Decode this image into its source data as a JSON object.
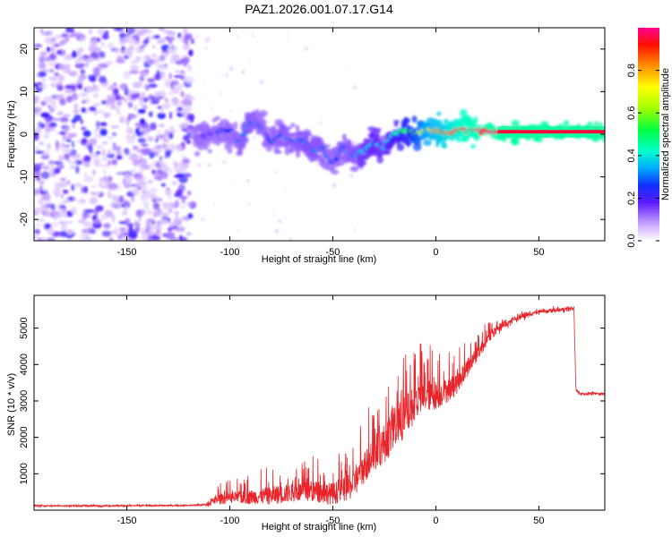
{
  "title": "PAZ1.2026.001.07.17.G14",
  "chart_data": [
    {
      "type": "heatmap",
      "name": "spectrogram",
      "xlabel": "Height of straight line (km)",
      "ylabel": "Frequency (Hz)",
      "xlim": [
        -195,
        82
      ],
      "ylim": [
        -25,
        25
      ],
      "xticks": [
        -150,
        -100,
        -50,
        0,
        50
      ],
      "xtick_labels": [
        "-150",
        "-100",
        "-50",
        "0",
        "50"
      ],
      "yticks": [
        -20,
        -10,
        0,
        10,
        20
      ],
      "ytick_labels": [
        "-20",
        "-10",
        "0",
        "10",
        "20"
      ],
      "colorbar": {
        "label": "Normalized spectral amplitude",
        "range": [
          0,
          1
        ],
        "ticks": [
          0.0,
          0.2,
          0.4,
          0.6,
          0.8
        ],
        "tick_labels": [
          "0.0",
          "0.2",
          "0.4",
          "0.6",
          "0.8"
        ],
        "colormap": [
          "#ffffff",
          "#9b4dff",
          "#3a1aff",
          "#00c8ff",
          "#00ff80",
          "#7fff00",
          "#ffff00",
          "#ff8000",
          "#ff0000",
          "#ff0080"
        ]
      },
      "ridge": {
        "x": [
          -117,
          -110,
          -100,
          -95,
          -90,
          -85,
          -80,
          -75,
          -70,
          -65,
          -60,
          -55,
          -50,
          -45,
          -40,
          -35,
          -30,
          -25,
          -20,
          -15,
          -10,
          -5,
          0,
          5,
          10,
          15,
          20,
          30,
          40,
          60,
          82
        ],
        "frequency": [
          -1,
          0,
          1,
          -2,
          3,
          2,
          -2,
          0,
          -2,
          -1,
          -4,
          -3,
          -7,
          -3,
          -5,
          -4,
          -2,
          -3,
          0,
          1,
          0,
          1,
          1,
          0,
          1,
          1,
          0.8,
          0.6,
          0.6,
          0.6,
          0.6
        ],
        "amplitude": [
          0.12,
          0.2,
          0.25,
          0.28,
          0.3,
          0.28,
          0.25,
          0.3,
          0.28,
          0.3,
          0.32,
          0.3,
          0.25,
          0.3,
          0.3,
          0.35,
          0.38,
          0.35,
          0.45,
          0.5,
          0.6,
          0.75,
          0.8,
          0.85,
          0.9,
          0.95,
          0.95,
          1.0,
          1.0,
          1.0,
          1.0
        ]
      },
      "noise_region_x": [
        -195,
        -118
      ]
    },
    {
      "type": "line",
      "name": "snr",
      "xlabel": "Height of straight line (km)",
      "ylabel": "SNR (10 * v/v)",
      "xlim": [
        -195,
        82
      ],
      "ylim": [
        0,
        5900
      ],
      "xticks": [
        -150,
        -100,
        -50,
        0,
        50
      ],
      "xtick_labels": [
        "-150",
        "-100",
        "-50",
        "0",
        "50"
      ],
      "yticks": [
        1000,
        2000,
        3000,
        4000,
        5000
      ],
      "ytick_labels": [
        "1000",
        "2000",
        "3000",
        "4000",
        "5000"
      ],
      "color": "#e8242a",
      "envelope": {
        "x": [
          -195,
          -160,
          -120,
          -112,
          -105,
          -100,
          -90,
          -80,
          -70,
          -60,
          -50,
          -42,
          -38,
          -35,
          -30,
          -25,
          -20,
          -15,
          -10,
          -5,
          0,
          5,
          10,
          15,
          20,
          25,
          30,
          40,
          50,
          60,
          67,
          68,
          70,
          82
        ],
        "mean": [
          120,
          120,
          130,
          150,
          320,
          350,
          380,
          420,
          500,
          550,
          480,
          650,
          900,
          1200,
          1600,
          1900,
          2300,
          2600,
          3000,
          3200,
          3200,
          3300,
          3500,
          3900,
          4300,
          4700,
          5000,
          5300,
          5450,
          5500,
          5550,
          3300,
          3200,
          3200
        ],
        "spread": [
          40,
          40,
          40,
          60,
          300,
          300,
          400,
          500,
          500,
          600,
          600,
          700,
          800,
          900,
          1000,
          1100,
          1200,
          1200,
          1000,
          900,
          800,
          700,
          600,
          500,
          400,
          300,
          250,
          150,
          100,
          100,
          100,
          60,
          60,
          60
        ]
      }
    }
  ]
}
